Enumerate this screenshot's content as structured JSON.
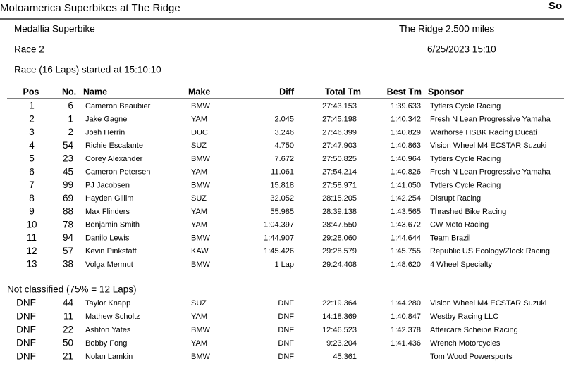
{
  "header": {
    "title": "Motoamerica Superbikes at The Ridge",
    "right_cut": "So",
    "class_name": "Medallia Superbike",
    "track": "The Ridge 2.500 miles",
    "race": "Race 2",
    "datetime": "6/25/2023 15:10",
    "started": "Race (16 Laps) started at 15:10:10"
  },
  "table": {
    "columns": [
      "Pos",
      "No.",
      "Name",
      "Make",
      "Diff",
      "Total Tm",
      "Best Tm",
      "Sponsor"
    ],
    "rows": [
      [
        "1",
        "6",
        "Cameron Beaubier",
        "BMW",
        null,
        "27:43.153",
        "1:39.633",
        "Tytlers Cycle Racing"
      ],
      [
        "2",
        "1",
        "Jake Gagne",
        "YAM",
        "2.045",
        "27:45.198",
        "1:40.342",
        "Fresh N Lean Progressive Yamaha"
      ],
      [
        "3",
        "2",
        "Josh Herrin",
        "DUC",
        "3.246",
        "27:46.399",
        "1:40.829",
        "Warhorse HSBK Racing Ducati"
      ],
      [
        "4",
        "54",
        "Richie Escalante",
        "SUZ",
        "4.750",
        "27:47.903",
        "1:40.863",
        "Vision Wheel M4 ECSTAR Suzuki"
      ],
      [
        "5",
        "23",
        "Corey Alexander",
        "BMW",
        "7.672",
        "27:50.825",
        "1:40.964",
        "Tytlers Cycle Racing"
      ],
      [
        "6",
        "45",
        "Cameron Petersen",
        "YAM",
        "11.061",
        "27:54.214",
        "1:40.826",
        "Fresh N Lean Progressive Yamaha"
      ],
      [
        "7",
        "99",
        "PJ Jacobsen",
        "BMW",
        "15.818",
        "27:58.971",
        "1:41.050",
        "Tytlers Cycle Racing"
      ],
      [
        "8",
        "69",
        "Hayden Gillim",
        "SUZ",
        "32.052",
        "28:15.205",
        "1:42.254",
        "Disrupt Racing"
      ],
      [
        "9",
        "88",
        "Max Flinders",
        "YAM",
        "55.985",
        "28:39.138",
        "1:43.565",
        "Thrashed Bike Racing"
      ],
      [
        "10",
        "78",
        "Benjamin Smith",
        "YAM",
        "1:04.397",
        "28:47.550",
        "1:43.672",
        "CW Moto Racing"
      ],
      [
        "11",
        "94",
        "Danilo Lewis",
        "BMW",
        "1:44.907",
        "29:28.060",
        "1:44.644",
        "Team Brazil"
      ],
      [
        "12",
        "57",
        "Kevin Pinkstaff",
        "KAW",
        "1:45.426",
        "29:28.579",
        "1:45.755",
        "Republic US Ecology/Zlock Racing"
      ],
      [
        "13",
        "38",
        "Volga Mermut",
        "BMW",
        "1 Lap",
        "29:24.408",
        "1:48.620",
        "4 Wheel Specialty"
      ]
    ]
  },
  "not_classified": {
    "label": "Not classified (75% = 12 Laps)",
    "rows": [
      [
        "DNF",
        "44",
        "Taylor Knapp",
        "SUZ",
        "DNF",
        "22:19.364",
        "1:44.280",
        "Vision Wheel M4 ECSTAR Suzuki"
      ],
      [
        "DNF",
        "11",
        "Mathew Scholtz",
        "YAM",
        "DNF",
        "14:18.369",
        "1:40.847",
        "Westby Racing LLC"
      ],
      [
        "DNF",
        "22",
        "Ashton Yates",
        "BMW",
        "DNF",
        "12:46.523",
        "1:42.378",
        "Aftercare Scheibe Racing"
      ],
      [
        "DNF",
        "50",
        "Bobby Fong",
        "YAM",
        "DNF",
        "9:23.204",
        "1:41.436",
        "Wrench Motorcycles"
      ],
      [
        "DNF",
        "21",
        "Nolan Lamkin",
        "BMW",
        "DNF",
        "45.361",
        null,
        "Tom Wood Powersports"
      ]
    ]
  }
}
